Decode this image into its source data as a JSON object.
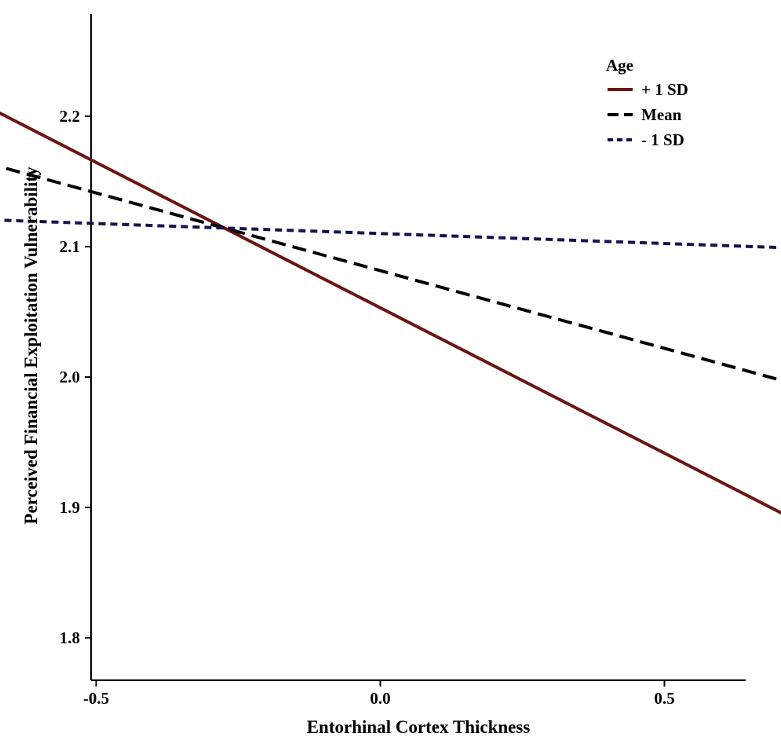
{
  "chart_data": {
    "type": "line",
    "title": "",
    "xlabel": "Entorhinal Cortex Thickness",
    "ylabel": "Perceived Financial Exploitation Vulnerability",
    "xlim": [
      -1.0,
      1.3
    ],
    "ylim": [
      1.77,
      2.28
    ],
    "xticks": [
      "-1.0",
      "-0.5",
      "0.0",
      "0.5",
      "1.0"
    ],
    "yticks": [
      "1.8",
      "1.9",
      "2.0",
      "2.1",
      "2.2"
    ],
    "legend": {
      "title": "Age",
      "position": "top-right"
    },
    "series": [
      {
        "name": "+ 1 SD",
        "color": "#6b1414",
        "style": "solid",
        "x": [
          -0.91,
          1.18
        ],
        "y": [
          2.256,
          1.79
        ]
      },
      {
        "name": "Mean",
        "color": "#000000",
        "style": "dashed",
        "x": [
          -0.91,
          1.18
        ],
        "y": [
          2.19,
          1.941
        ]
      },
      {
        "name": "- 1 SD",
        "color": "#141450",
        "style": "dotted",
        "x": [
          -0.91,
          1.18
        ],
        "y": [
          2.124,
          2.092
        ]
      }
    ]
  }
}
